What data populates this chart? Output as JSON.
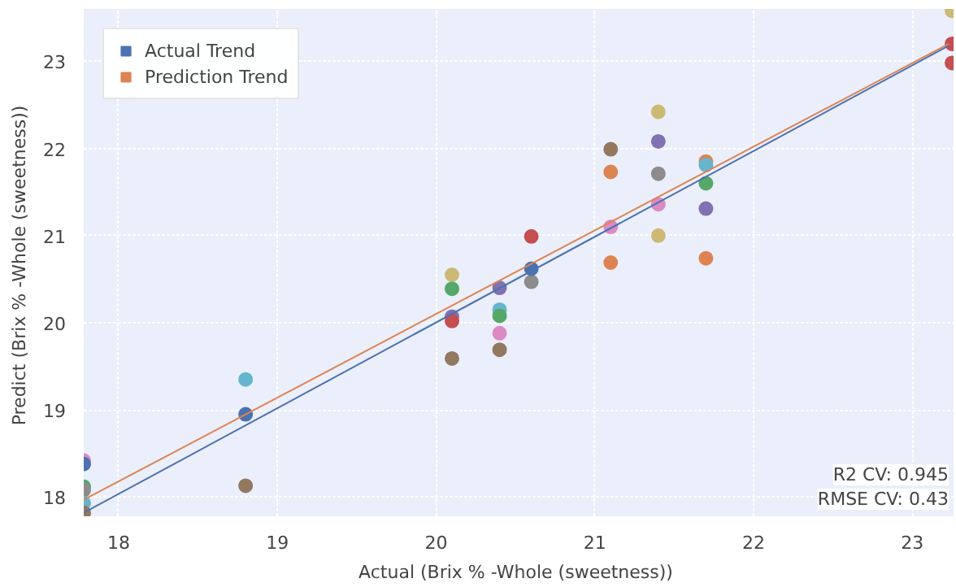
{
  "chart_data": {
    "type": "scatter",
    "xlabel": "Actual (Brix % -Whole  (sweetness))",
    "ylabel": "Predict (Brix % -Whole  (sweetness))",
    "xlim": [
      17.78,
      23.26
    ],
    "ylim": [
      17.78,
      23.6
    ],
    "xticks": [
      18,
      19,
      20,
      21,
      22,
      23
    ],
    "yticks": [
      18,
      19,
      20,
      21,
      22,
      23
    ],
    "grid": true,
    "legend": "top left",
    "marker": "circle",
    "annotations": [
      "R2 CV: 0.945",
      "RMSE CV: 0.43"
    ],
    "series": [
      {
        "x": [
          17.78,
          17.78,
          17.78,
          17.78,
          17.78,
          17.78,
          18.8,
          18.8,
          18.8,
          20.1,
          20.1,
          20.1,
          20.1,
          20.1,
          20.4,
          20.4,
          20.4,
          20.4,
          20.4,
          20.6,
          20.6,
          20.6,
          21.1,
          21.1,
          21.1,
          21.1,
          21.4,
          21.4,
          21.4,
          21.4,
          21.4,
          21.7,
          21.7,
          21.7,
          21.7,
          21.7,
          23.25,
          23.25,
          23.25
        ],
        "values": [
          18.42,
          18.38,
          18.12,
          18.08,
          17.93,
          17.82,
          19.35,
          18.95,
          18.13,
          20.55,
          20.39,
          20.07,
          20.02,
          19.59,
          20.4,
          20.15,
          20.08,
          19.88,
          19.69,
          20.47,
          20.62,
          20.99,
          21.99,
          21.73,
          21.1,
          20.69,
          22.42,
          22.08,
          21.71,
          21.36,
          21.0,
          21.85,
          21.81,
          21.6,
          21.31,
          20.74,
          23.58,
          23.2,
          22.98
        ],
        "colors": [
          "#da8bc3",
          "#4c72b0",
          "#55a868",
          "#8c8c8c",
          "#64b5cd",
          "#937860",
          "#64b5cd",
          "#4c72b0",
          "#937860",
          "#ccb974",
          "#55a868",
          "#8172b3",
          "#c44e52",
          "#937860",
          "#8172b3",
          "#64b5cd",
          "#55a868",
          "#da8bc3",
          "#937860",
          "#8c8c8c",
          "#4c72b0",
          "#c44e52",
          "#937860",
          "#dd8452",
          "#da8bc3",
          "#dd8452",
          "#ccb974",
          "#8172b3",
          "#8c8c8c",
          "#da8bc3",
          "#ccb974",
          "#dd8452",
          "#64b5cd",
          "#55a868",
          "#8172b3",
          "#dd8452",
          "#ccb974",
          "#c44e52",
          "#c44e52"
        ]
      },
      {
        "type": "line",
        "name": "Actual Trend",
        "color": "#4c72b0",
        "marker": "none",
        "x": [
          17.78,
          23.23
        ],
        "values": [
          17.82,
          23.18
        ]
      },
      {
        "type": "line",
        "name": "Prediction Trend",
        "color": "#dd8452",
        "marker": "none",
        "x": [
          17.78,
          23.23
        ],
        "values": [
          17.97,
          23.2
        ]
      }
    ]
  }
}
